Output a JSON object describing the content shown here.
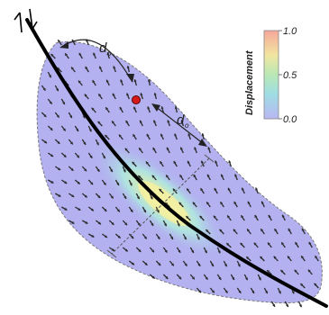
{
  "colorbar": {
    "title": "Displacement",
    "ticks": [
      {
        "label": "1.0",
        "value": 1.0
      },
      {
        "label": "0.5",
        "value": 0.5
      },
      {
        "label": "0.0",
        "value": 0.0
      }
    ],
    "colors": {
      "high": "#f6a79a",
      "upper_mid": "#f1e6a0",
      "mid": "#b9e8b5",
      "lower_mid": "#9fdde4",
      "low": "#b9b7f2"
    }
  },
  "distance_labels": {
    "upper": "d",
    "lower": "d"
  },
  "colors": {
    "region_fill": "#b3b1f0",
    "fault_line": "#000000",
    "arrows": "#2a2a2a",
    "outline": "#777777",
    "marker_point": "#d41a1a"
  },
  "icons": {
    "fault_sense": "strike-slip-half-arrows-icon"
  }
}
